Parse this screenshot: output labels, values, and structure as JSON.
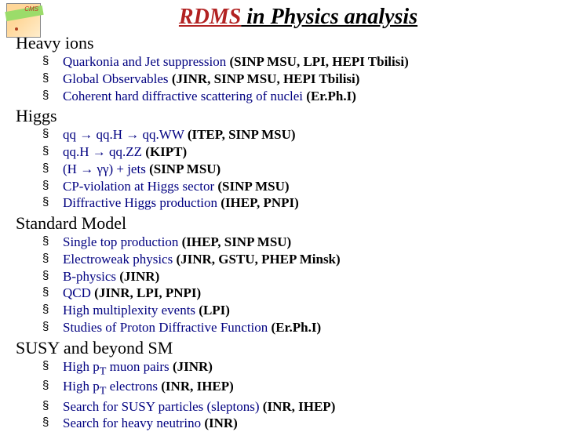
{
  "logo_label": "CMS",
  "title": {
    "rdms": "RDMS",
    "rest": " in Physics analysis"
  },
  "sections": [
    {
      "head": "Heavy ions",
      "items": [
        {
          "plain": "Quarkonia and Jet suppression ",
          "bold": "(SINP MSU, LPI, HEPI Tbilisi)"
        },
        {
          "plain": "Global  Observables ",
          "bold": "(JINR, SINP MSU, HEPI Tbilisi)"
        },
        {
          "plain": "Coherent hard diffractive scattering of nuclei ",
          "bold": "(Er.Ph.I)"
        }
      ]
    },
    {
      "head": "Higgs",
      "items": [
        {
          "plain": "qq → qq.H → qq.WW ",
          "bold": "(ITEP, SINP MSU)"
        },
        {
          "plain": "qq.H → qq.ZZ ",
          "bold": "(KIPT)"
        },
        {
          "plain": "(H → γγ) + jets ",
          "bold": "(SINP MSU)"
        },
        {
          "plain": "CP-violation at Higgs sector ",
          "bold": "(SINP MSU)"
        },
        {
          "plain": "Diffractive Higgs production ",
          "bold": "(IHEP, PNPI)"
        }
      ]
    },
    {
      "head": "Standard Model",
      "items": [
        {
          "plain": "Single top production ",
          "bold": "(IHEP, SINP MSU)"
        },
        {
          "plain": "Electroweak physics ",
          "bold": "(JINR, GSTU, PHEP Minsk)"
        },
        {
          "plain": "B-physics ",
          "bold": "(JINR)"
        },
        {
          "plain": "QCD ",
          "bold": "(JINR, LPI, PNPI)"
        },
        {
          "plain": "High multiplexity events ",
          "bold": "(LPI)"
        },
        {
          "plain": "Studies of Proton Diffractive Function ",
          "bold": "(Er.Ph.I)"
        }
      ]
    },
    {
      "head": "SUSY and beyond SM",
      "items": [
        {
          "plain_pre": "High p",
          "sub": "T",
          "plain_post": " muon pairs ",
          "bold": "(JINR)"
        },
        {
          "plain_pre": "High p",
          "sub": "T",
          "plain_post": " electrons ",
          "bold": "(INR, IHEP)"
        },
        {
          "plain": "Search for SUSY particles (sleptons) ",
          "bold": "(INR, IHEP)"
        },
        {
          "plain": "Search for heavy neutrino ",
          "bold": "(INR)"
        }
      ]
    }
  ],
  "colors": {
    "title_accent": "#b22222",
    "text_plain": "#000080",
    "text_bold": "#000000",
    "background": "#ffffff"
  }
}
